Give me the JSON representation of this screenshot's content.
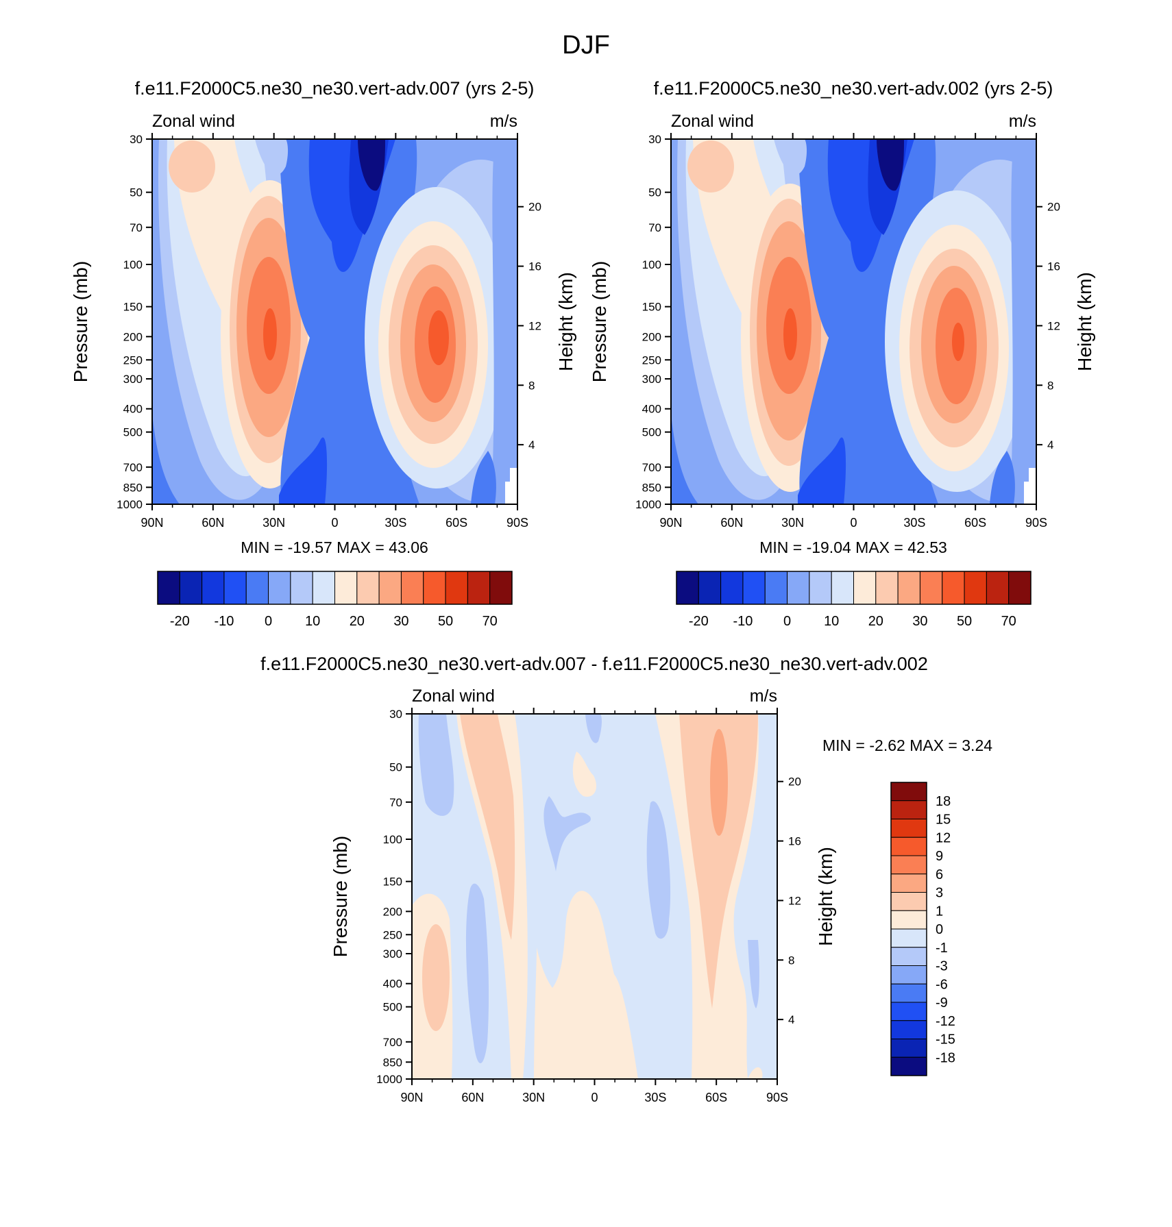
{
  "figure": {
    "title": "DJF",
    "variable": "Zonal wind",
    "units": "m/s",
    "ylabel_left": "Pressure (mb)",
    "ylabel_right": "Height (km)",
    "y_ticks_pressure": [
      "30",
      "50",
      "70",
      "100",
      "150",
      "200",
      "250",
      "300",
      "400",
      "500",
      "700",
      "850",
      "1000"
    ],
    "y_ticks_height": [
      "20",
      "16",
      "12",
      "8",
      "4"
    ],
    "x_ticks": [
      "90N",
      "60N",
      "30N",
      "0",
      "30S",
      "60S",
      "90S"
    ]
  },
  "colors": {
    "main_levels": [
      "#0b0c80",
      "#0a24b4",
      "#1238de",
      "#2050f4",
      "#4a7bf4",
      "#86a8f7",
      "#b4c9f9",
      "#d8e6fa",
      "#fdebd9",
      "#fccbb0",
      "#fba882",
      "#fa7f54",
      "#f65a2c",
      "#e03810",
      "#bb2310",
      "#800c0c"
    ],
    "diff_levels": [
      "#800c0c",
      "#bb2310",
      "#e03810",
      "#f65a2c",
      "#fa7f54",
      "#fba882",
      "#fccbb0",
      "#fdebd9",
      "#d8e6fa",
      "#b4c9f9",
      "#86a8f7",
      "#4a7bf4",
      "#2050f4",
      "#1238de",
      "#0a24b4",
      "#0b0c80"
    ]
  },
  "chart_data": [
    {
      "type": "heatmap",
      "title": "f.e11.F2000C5.ne30_ne30.vert-adv.007 (yrs 2-5)",
      "xlabel": "",
      "ylabel": "Pressure (mb)",
      "ylabel_right": "Height (km)",
      "variable": "Zonal wind",
      "units": "m/s",
      "x_range": [
        "90N",
        "90S"
      ],
      "y_range_mb": [
        1000,
        30
      ],
      "min": "-19.57",
      "max": "43.06",
      "colorbar_labels": [
        "-20",
        "-10",
        "0",
        "10",
        "20",
        "30",
        "50",
        "70"
      ],
      "features": [
        {
          "kind": "jet",
          "lat": 30,
          "pressure_mb": 200,
          "value": 43
        },
        {
          "kind": "jet",
          "lat": -48,
          "pressure_mb": 200,
          "value": 38
        },
        {
          "kind": "easterly",
          "lat": -12,
          "pressure_mb": 30,
          "value": -19.6
        }
      ]
    },
    {
      "type": "heatmap",
      "title": "f.e11.F2000C5.ne30_ne30.vert-adv.002 (yrs 2-5)",
      "xlabel": "",
      "ylabel": "Pressure (mb)",
      "ylabel_right": "Height (km)",
      "variable": "Zonal wind",
      "units": "m/s",
      "x_range": [
        "90N",
        "90S"
      ],
      "y_range_mb": [
        1000,
        30
      ],
      "min": "-19.04",
      "max": "42.53",
      "colorbar_labels": [
        "-20",
        "-10",
        "0",
        "10",
        "20",
        "30",
        "50",
        "70"
      ],
      "features": [
        {
          "kind": "jet",
          "lat": 30,
          "pressure_mb": 200,
          "value": 42.5
        },
        {
          "kind": "jet",
          "lat": -48,
          "pressure_mb": 200,
          "value": 37
        },
        {
          "kind": "easterly",
          "lat": -13,
          "pressure_mb": 30,
          "value": -19
        }
      ]
    },
    {
      "type": "heatmap",
      "title": "f.e11.F2000C5.ne30_ne30.vert-adv.007 - f.e11.F2000C5.ne30_ne30.vert-adv.002",
      "xlabel": "",
      "ylabel": "Pressure (mb)",
      "ylabel_right": "Height (km)",
      "variable": "Zonal wind",
      "units": "m/s",
      "x_range": [
        "90N",
        "90S"
      ],
      "y_range_mb": [
        1000,
        30
      ],
      "min": "-2.62",
      "max": "3.24",
      "colorbar_labels": [
        "18",
        "15",
        "12",
        "9",
        "6",
        "3",
        "1",
        "0",
        "-1",
        "-3",
        "-6",
        "-9",
        "-12",
        "-15",
        "-18"
      ],
      "features": [
        {
          "kind": "positive",
          "lat": -60,
          "pressure_mb": 50,
          "value": 3.24
        },
        {
          "kind": "negative",
          "lat": 45,
          "pressure_mb": 350,
          "value": -2.62
        }
      ]
    }
  ]
}
